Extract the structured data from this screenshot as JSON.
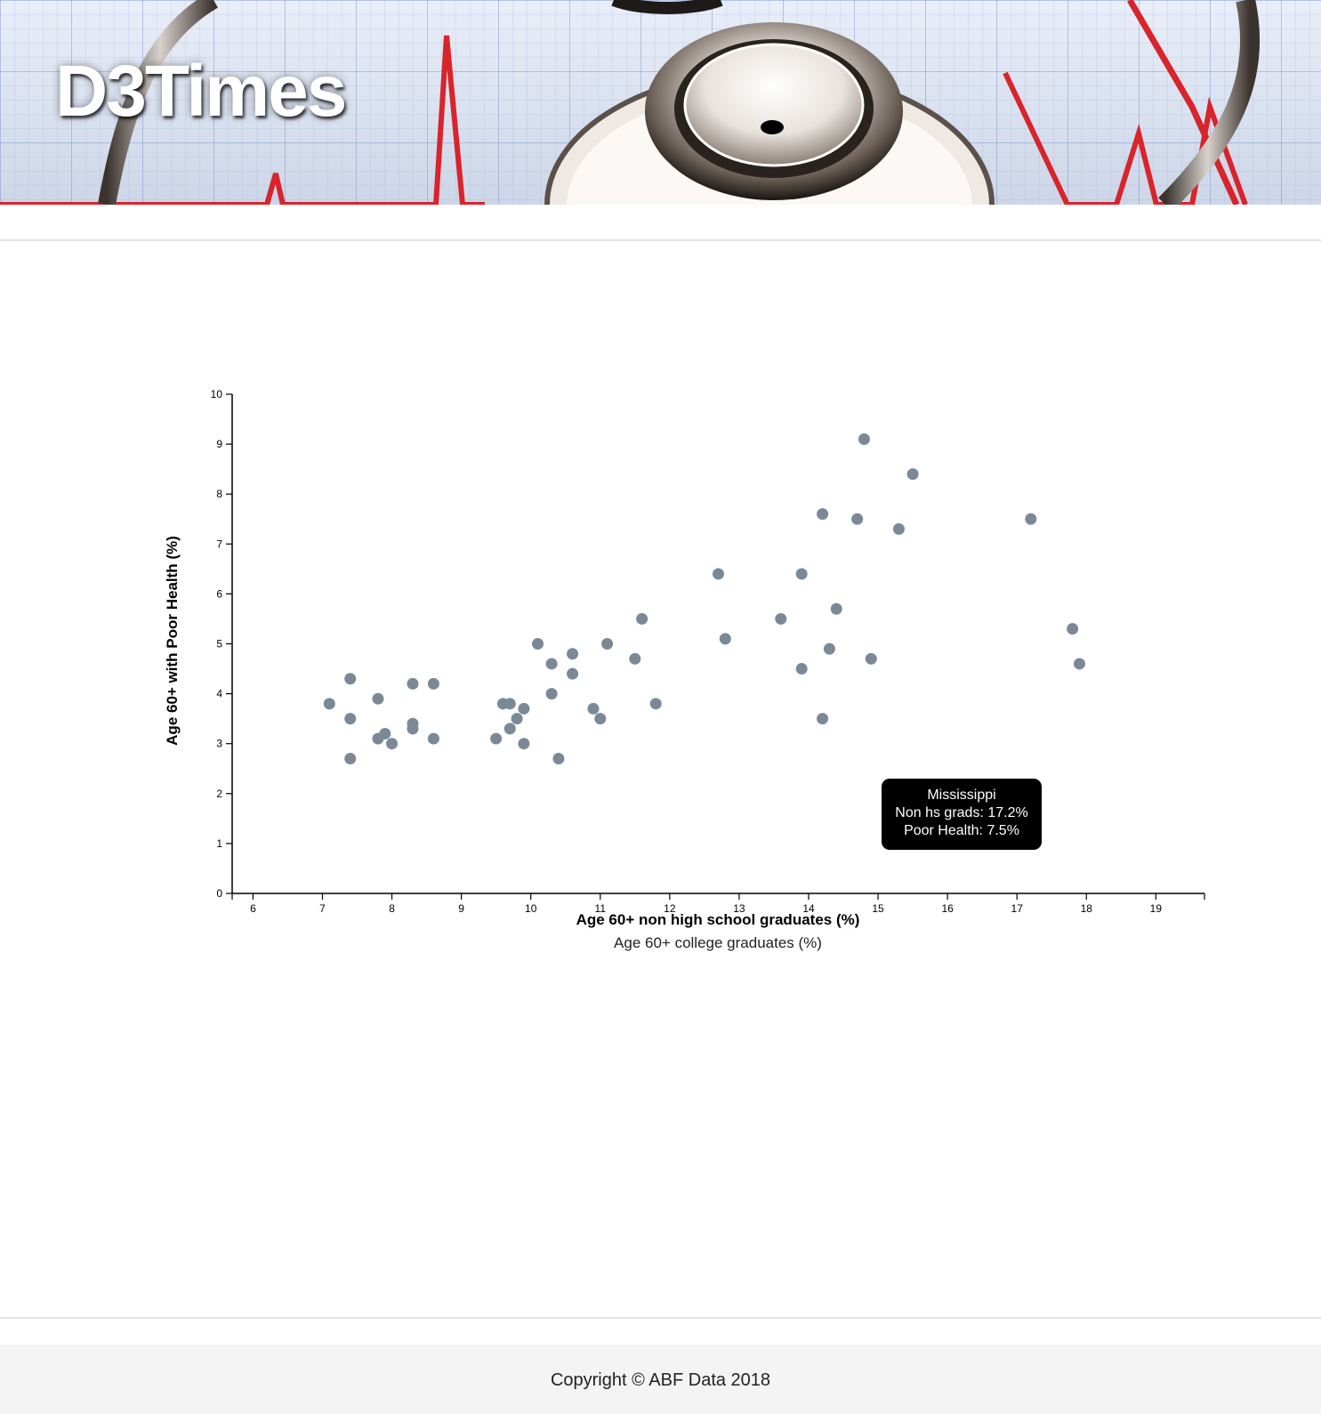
{
  "header": {
    "brand": "D3Times"
  },
  "chart_data": {
    "type": "scatter",
    "xlabel": "Age 60+ non high school graduates (%)",
    "xlabel_alt": "Age 60+ college graduates (%)",
    "ylabel": "Age 60+ with Poor Health (%)",
    "xlim": [
      5.7,
      19.7
    ],
    "ylim": [
      0,
      10
    ],
    "x_ticks": [
      6,
      7,
      8,
      9,
      10,
      11,
      12,
      13,
      14,
      15,
      16,
      17,
      18,
      19
    ],
    "y_ticks": [
      0,
      1,
      2,
      3,
      4,
      5,
      6,
      7,
      8,
      9,
      10
    ],
    "point_color": "#7b8996",
    "points": [
      {
        "x": 7.1,
        "y": 3.8
      },
      {
        "x": 7.4,
        "y": 4.3
      },
      {
        "x": 7.4,
        "y": 3.5
      },
      {
        "x": 7.4,
        "y": 2.7
      },
      {
        "x": 7.8,
        "y": 3.9
      },
      {
        "x": 7.8,
        "y": 3.1
      },
      {
        "x": 7.9,
        "y": 3.2
      },
      {
        "x": 8.0,
        "y": 3.0
      },
      {
        "x": 8.3,
        "y": 4.2
      },
      {
        "x": 8.3,
        "y": 3.4
      },
      {
        "x": 8.3,
        "y": 3.3
      },
      {
        "x": 8.6,
        "y": 4.2
      },
      {
        "x": 8.6,
        "y": 3.1
      },
      {
        "x": 9.5,
        "y": 3.1
      },
      {
        "x": 9.6,
        "y": 3.8
      },
      {
        "x": 9.7,
        "y": 3.8
      },
      {
        "x": 9.7,
        "y": 3.3
      },
      {
        "x": 9.8,
        "y": 3.5
      },
      {
        "x": 9.9,
        "y": 3.7
      },
      {
        "x": 9.9,
        "y": 3.0
      },
      {
        "x": 10.1,
        "y": 5.0
      },
      {
        "x": 10.3,
        "y": 4.6
      },
      {
        "x": 10.3,
        "y": 4.0
      },
      {
        "x": 10.4,
        "y": 2.7
      },
      {
        "x": 10.6,
        "y": 4.8
      },
      {
        "x": 10.6,
        "y": 4.4
      },
      {
        "x": 10.9,
        "y": 3.7
      },
      {
        "x": 11.0,
        "y": 3.5
      },
      {
        "x": 11.1,
        "y": 5.0
      },
      {
        "x": 11.5,
        "y": 4.7
      },
      {
        "x": 11.6,
        "y": 5.5
      },
      {
        "x": 11.8,
        "y": 3.8
      },
      {
        "x": 12.7,
        "y": 6.4
      },
      {
        "x": 12.8,
        "y": 5.1
      },
      {
        "x": 13.6,
        "y": 5.5
      },
      {
        "x": 13.9,
        "y": 6.4
      },
      {
        "x": 13.9,
        "y": 4.5
      },
      {
        "x": 14.2,
        "y": 7.6
      },
      {
        "x": 14.2,
        "y": 3.5
      },
      {
        "x": 14.3,
        "y": 4.9
      },
      {
        "x": 14.4,
        "y": 5.7
      },
      {
        "x": 14.7,
        "y": 7.5
      },
      {
        "x": 14.8,
        "y": 9.1
      },
      {
        "x": 14.9,
        "y": 4.7
      },
      {
        "x": 15.3,
        "y": 7.3
      },
      {
        "x": 15.5,
        "y": 8.4
      },
      {
        "x": 17.2,
        "y": 7.5
      },
      {
        "x": 17.8,
        "y": 5.3
      },
      {
        "x": 17.9,
        "y": 4.6
      }
    ],
    "tooltip": {
      "state": "Mississippi",
      "line1": "Non hs grads: 17.2%",
      "line2": "Poor Health: 7.5%"
    }
  },
  "footer": {
    "copyright": "Copyright © ABF Data 2018"
  }
}
